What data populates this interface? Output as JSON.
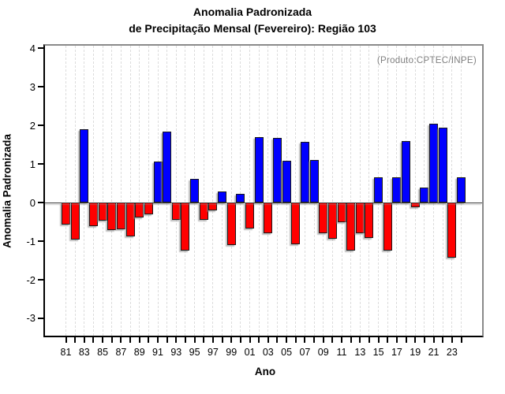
{
  "title": {
    "line1": "Anomalia Padronizada",
    "line2": "de Precipitação Mensal (Fevereiro): Região 103"
  },
  "annotation": "(Produto:CPTEC/INPE)",
  "axes": {
    "y_label": "Anomalia Padronizada",
    "x_label": "Ano",
    "y_ticks": [
      4,
      3,
      2,
      1,
      0,
      -1,
      -2,
      -3
    ],
    "x_tick_labels": [
      "81",
      "83",
      "85",
      "87",
      "89",
      "91",
      "93",
      "95",
      "97",
      "99",
      "01",
      "03",
      "05",
      "07",
      "09",
      "11",
      "13",
      "15",
      "17",
      "19",
      "21",
      "23"
    ]
  },
  "colors": {
    "positive": "#0000ff",
    "negative": "#ff0000",
    "annotation": "#808080",
    "grid": "#dcdcdc"
  },
  "chart_data": {
    "type": "bar",
    "title": "Anomalia Padronizada de Precipitação Mensal (Fevereiro): Região 103",
    "xlabel": "Ano",
    "ylabel": "Anomalia Padronizada",
    "annotation": "(Produto:CPTEC/INPE)",
    "years": [
      1981,
      1982,
      1983,
      1984,
      1985,
      1986,
      1987,
      1988,
      1989,
      1990,
      1991,
      1992,
      1993,
      1994,
      1995,
      1996,
      1997,
      1998,
      1999,
      2000,
      2001,
      2002,
      2003,
      2004,
      2005,
      2006,
      2007,
      2008,
      2009,
      2010,
      2011,
      2012,
      2013,
      2014,
      2015,
      2016,
      2017,
      2018,
      2019,
      2020,
      2021,
      2022,
      2023,
      2024
    ],
    "values": [
      -0.56,
      -0.96,
      1.9,
      -0.61,
      -0.46,
      -0.72,
      -0.7,
      -0.88,
      -0.38,
      -0.3,
      1.07,
      1.85,
      -0.45,
      -1.25,
      0.62,
      -0.45,
      -0.21,
      0.29,
      -1.1,
      0.22,
      -0.67,
      1.69,
      -0.79,
      1.67,
      1.08,
      -1.07,
      1.57,
      1.11,
      -0.8,
      -0.94,
      -0.51,
      -1.25,
      -0.8,
      -0.92,
      0.66,
      -1.24,
      0.66,
      1.59,
      -0.12,
      0.4,
      2.05,
      1.95,
      -1.42,
      0.66
    ],
    "ylim": [
      -3.45,
      4.07
    ],
    "y_ticks": [
      -3,
      -2,
      -1,
      0,
      1,
      2,
      3,
      4
    ],
    "bar_color_positive": "#0000ff",
    "bar_color_negative": "#ff0000",
    "grid": "vertical dashed line per year",
    "legend_position": "none"
  }
}
